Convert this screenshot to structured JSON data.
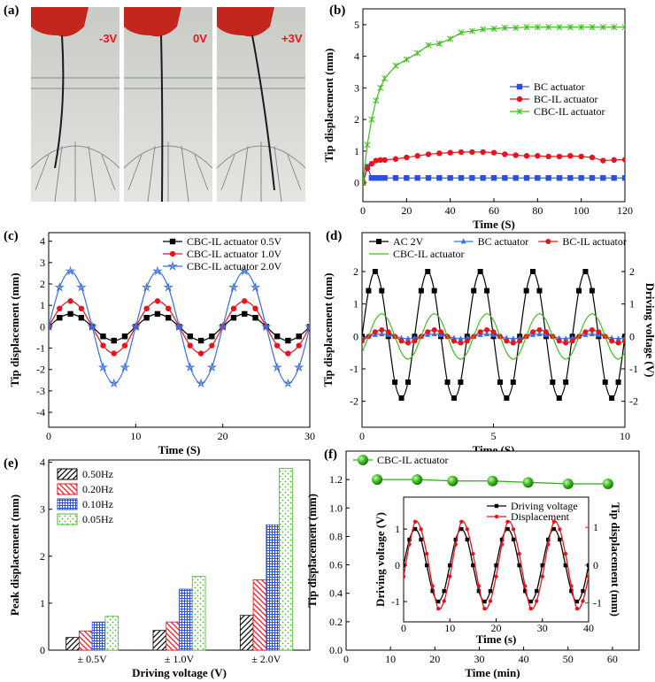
{
  "panel_a": {
    "label": "(a)",
    "captions": [
      "-3V",
      "0V",
      "+3V"
    ]
  },
  "chart_data": [
    {
      "type": "line",
      "label": "(b)",
      "x_label": "Time (S)",
      "y_label": "Tip displacement (mm)",
      "xlim": [
        0,
        120
      ],
      "ylim": [
        -0.6,
        5.5
      ],
      "xticks": [
        0,
        20,
        40,
        60,
        80,
        100,
        120
      ],
      "yticks": [
        0,
        1,
        2,
        3,
        4,
        5
      ],
      "legend": "center right",
      "smooth": false,
      "x": [
        0,
        2,
        4,
        6,
        8,
        10,
        15,
        20,
        25,
        30,
        35,
        40,
        45,
        50,
        55,
        60,
        65,
        70,
        75,
        80,
        85,
        90,
        95,
        100,
        105,
        110,
        115,
        120
      ],
      "series": [
        {
          "name": "BC actuator",
          "color": "#2b4fe0",
          "marker": "square",
          "values": [
            0,
            0.5,
            0.15,
            0.15,
            0.15,
            0.15,
            0.15,
            0.15,
            0.15,
            0.15,
            0.15,
            0.15,
            0.15,
            0.15,
            0.15,
            0.15,
            0.15,
            0.15,
            0.15,
            0.15,
            0.15,
            0.15,
            0.15,
            0.15,
            0.15,
            0.15,
            0.15,
            0.15
          ]
        },
        {
          "name": "BC-IL actuator",
          "color": "#e8141b",
          "marker": "circle",
          "values": [
            0,
            0.45,
            0.6,
            0.7,
            0.72,
            0.72,
            0.75,
            0.8,
            0.85,
            0.9,
            0.93,
            0.95,
            0.97,
            0.97,
            0.97,
            0.95,
            0.9,
            0.87,
            0.85,
            0.85,
            0.83,
            0.83,
            0.85,
            0.83,
            0.8,
            0.7,
            0.72,
            0.73
          ]
        },
        {
          "name": "CBC-IL actuator",
          "color": "#3fbf1f",
          "marker": "cross",
          "values": [
            0,
            1.2,
            2.0,
            2.6,
            3.0,
            3.3,
            3.7,
            3.9,
            4.1,
            4.35,
            4.4,
            4.55,
            4.75,
            4.8,
            4.85,
            4.87,
            4.9,
            4.9,
            4.92,
            4.92,
            4.92,
            4.92,
            4.92,
            4.92,
            4.92,
            4.92,
            4.92,
            4.92
          ]
        }
      ]
    },
    {
      "type": "line",
      "label": "(c)",
      "x_label": "Time (S)",
      "y_label": "Tip displacement (mm)",
      "xlim": [
        0,
        30
      ],
      "ylim": [
        -4.7,
        4.4
      ],
      "xticks": [
        0,
        10,
        20,
        30
      ],
      "yticks": [
        -4,
        -3,
        -2,
        -1,
        0,
        1,
        2,
        3,
        4
      ],
      "legend": "upper right",
      "smooth": true,
      "x": [
        0,
        1.25,
        2.5,
        3.75,
        5,
        6.25,
        7.5,
        8.75,
        10,
        11.25,
        12.5,
        13.75,
        15,
        16.25,
        17.5,
        18.75,
        20,
        21.25,
        22.5,
        23.75,
        25,
        26.25,
        27.5,
        28.75,
        30
      ],
      "series": [
        {
          "name": "CBC-IL actuator  0.5V",
          "color": "#000000",
          "marker": "square",
          "values": [
            0,
            0.42,
            0.6,
            0.42,
            0,
            -0.45,
            -0.65,
            -0.45,
            0,
            0.42,
            0.6,
            0.42,
            0,
            -0.45,
            -0.65,
            -0.45,
            0,
            0.42,
            0.6,
            0.42,
            0,
            -0.45,
            -0.65,
            -0.45,
            0
          ]
        },
        {
          "name": "CBC-IL actuator  1.0V",
          "color": "#e8141b",
          "marker": "circle",
          "values": [
            0,
            0.85,
            1.2,
            0.85,
            0,
            -0.88,
            -1.25,
            -0.88,
            0,
            0.85,
            1.2,
            0.85,
            0,
            -0.88,
            -1.25,
            -0.88,
            0,
            0.85,
            1.2,
            0.85,
            0,
            -0.88,
            -1.25,
            -0.88,
            0
          ]
        },
        {
          "name": "CBC-IL  actuator 2.0V",
          "color": "#3a6fe0",
          "marker": "star",
          "values": [
            0,
            1.84,
            2.6,
            1.84,
            0,
            -1.9,
            -2.65,
            -1.9,
            0,
            1.84,
            2.6,
            1.84,
            0,
            -1.9,
            -2.65,
            -1.9,
            0,
            1.84,
            2.6,
            1.84,
            0,
            -1.9,
            -2.65,
            -1.9,
            0
          ]
        }
      ]
    },
    {
      "type": "line",
      "label": "(d)",
      "x_label": "Time (S)",
      "y_label": "Tip displacement (mm)",
      "y2_label": "Driving voltage (V)",
      "xlim": [
        0,
        10
      ],
      "ylim": [
        -2.8,
        3.2
      ],
      "y2lim": [
        -2.8,
        3.2
      ],
      "xticks": [
        0,
        5,
        10
      ],
      "yticks": [
        -2,
        -1,
        0,
        1,
        2
      ],
      "y2ticks": [
        -2,
        -1,
        0,
        1,
        2
      ],
      "legend": "upper left",
      "legend_columns": 3,
      "smooth": true,
      "x": [
        0,
        0.25,
        0.5,
        0.75,
        1,
        1.25,
        1.5,
        1.75,
        2,
        2.25,
        2.5,
        2.75,
        3,
        3.25,
        3.5,
        3.75,
        4,
        4.25,
        4.5,
        4.75,
        5,
        5.25,
        5.5,
        5.75,
        6,
        6.25,
        6.5,
        6.75,
        7,
        7.25,
        7.5,
        7.75,
        8,
        8.25,
        8.5,
        8.75,
        9,
        9.25,
        9.5,
        9.75,
        10
      ],
      "series": [
        {
          "name": "AC 2V",
          "color": "#000000",
          "marker": "square",
          "axis": "y2",
          "values": [
            0,
            1.41,
            2,
            1.41,
            0,
            -1.41,
            -1.9,
            -1.41,
            0,
            1.41,
            2,
            1.41,
            0,
            -1.41,
            -1.9,
            -1.41,
            0,
            1.41,
            2,
            1.41,
            0,
            -1.41,
            -1.9,
            -1.41,
            0,
            1.41,
            2,
            1.41,
            0,
            -1.41,
            -1.9,
            -1.41,
            0,
            1.41,
            2,
            1.41,
            0,
            -1.41,
            -1.9,
            -1.41,
            0
          ]
        },
        {
          "name": "BC actuator",
          "color": "#3a6fe0",
          "marker": "triangle",
          "values": [
            -0.05,
            0,
            0.05,
            0.07,
            0.05,
            0,
            -0.05,
            -0.07,
            -0.05,
            0,
            0.05,
            0.07,
            0.05,
            0,
            -0.05,
            -0.07,
            -0.05,
            0,
            0.05,
            0.07,
            0.05,
            0,
            -0.05,
            -0.07,
            -0.05,
            0,
            0.05,
            0.07,
            0.05,
            0,
            -0.05,
            -0.07,
            -0.05,
            0,
            0.05,
            0.07,
            0.05,
            0,
            -0.05,
            -0.07,
            -0.05
          ]
        },
        {
          "name": "BC-IL actuator",
          "color": "#e8141b",
          "marker": "circle",
          "values": [
            -0.14,
            0,
            0.14,
            0.2,
            0.14,
            0,
            -0.14,
            -0.2,
            -0.14,
            0,
            0.14,
            0.2,
            0.14,
            0,
            -0.14,
            -0.2,
            -0.14,
            0,
            0.14,
            0.2,
            0.14,
            0,
            -0.14,
            -0.2,
            -0.14,
            0,
            0.14,
            0.2,
            0.14,
            0,
            -0.14,
            -0.2,
            -0.14,
            0,
            0.14,
            0.2,
            0.14,
            0,
            -0.14,
            -0.2,
            -0.14
          ]
        },
        {
          "name": "CBC-IL actuator",
          "color": "#3fbf1f",
          "marker": "none",
          "values": [
            -0.5,
            0,
            0.5,
            0.7,
            0.5,
            0,
            -0.5,
            -0.7,
            -0.5,
            0,
            0.5,
            0.7,
            0.5,
            0,
            -0.5,
            -0.7,
            -0.5,
            0,
            0.5,
            0.7,
            0.5,
            0,
            -0.5,
            -0.7,
            -0.5,
            0,
            0.5,
            0.7,
            0.5,
            0,
            -0.5,
            -0.7,
            -0.5,
            0,
            0.5,
            0.7,
            0.5,
            0,
            -0.5,
            -0.7,
            -0.5
          ]
        }
      ]
    },
    {
      "type": "bar",
      "label": "(e)",
      "x_label": "Driving voltage (V)",
      "y_label": "Peak displacement (mm)",
      "ylim": [
        0,
        4.05
      ],
      "yticks": [
        0,
        1,
        2,
        3,
        4
      ],
      "legend": "upper left",
      "categories": [
        "± 0.5V",
        "± 1.0V",
        "± 2.0V"
      ],
      "series": [
        {
          "name": "0.50Hz",
          "color": "#000000",
          "hatch": "diagonal",
          "values": [
            0.27,
            0.42,
            0.74
          ]
        },
        {
          "name": "0.20Hz",
          "color": "#e8141b",
          "hatch": "back-diagonal",
          "values": [
            0.41,
            0.6,
            1.5
          ]
        },
        {
          "name": "0.10Hz",
          "color": "#2b4fe0",
          "hatch": "grid",
          "values": [
            0.6,
            1.3,
            2.67
          ]
        },
        {
          "name": "0.05Hz",
          "color": "#3fbf1f",
          "hatch": "dots",
          "values": [
            0.72,
            1.57,
            3.87
          ]
        }
      ]
    },
    {
      "type": "line",
      "label": "(f)",
      "x_label": "Time (min)",
      "y_label": "Tip displacement (mm)",
      "xlim": [
        0,
        66
      ],
      "ylim": [
        0,
        1.4
      ],
      "xticks": [
        0,
        10,
        20,
        30,
        40,
        50,
        60
      ],
      "yticks": [
        {
          "value": 0,
          "label": "0.0"
        },
        0.2,
        0.4,
        0.6,
        0.8,
        {
          "value": 1,
          "label": "1.0"
        },
        1.2
      ],
      "legend": "upper left",
      "smooth": false,
      "x": [
        7,
        16,
        24,
        33,
        41,
        50,
        59
      ],
      "series": [
        {
          "name": "CBC-IL actuator",
          "color": "#2fa81a",
          "marker": "ball",
          "values": [
            1.2,
            1.2,
            1.19,
            1.19,
            1.18,
            1.17,
            1.17
          ]
        }
      ]
    },
    {
      "type": "line",
      "x_label": "Time (s)",
      "y_label": "Driving voltage (V)",
      "y2_label": "Tip displacement (mm)",
      "y2_color": "#e8141b",
      "xlim": [
        0,
        40
      ],
      "ylim": [
        -1.56,
        1.88
      ],
      "y2lim": [
        -1.5,
        1.8
      ],
      "xticks": [
        0,
        10,
        20,
        30,
        40
      ],
      "yticks": [
        -1,
        0,
        1
      ],
      "y2ticks": [
        -1,
        0,
        1
      ],
      "legend": "upper right",
      "smooth": true,
      "x": [
        0,
        1.25,
        2.5,
        3.75,
        5,
        6.25,
        7.5,
        8.75,
        10,
        11.25,
        12.5,
        13.75,
        15,
        16.25,
        17.5,
        18.75,
        20,
        21.25,
        22.5,
        23.75,
        25,
        26.25,
        27.5,
        28.75,
        30,
        31.25,
        32.5,
        33.75,
        35,
        36.25,
        37.5,
        38.75,
        40
      ],
      "series": [
        {
          "name": "Driving voltage",
          "color": "#000000",
          "marker": "small-square",
          "values": [
            0,
            0.71,
            1,
            0.71,
            0,
            -0.71,
            -1,
            -0.71,
            0,
            0.71,
            1,
            0.71,
            0,
            -0.71,
            -1,
            -0.71,
            0,
            0.71,
            1,
            0.71,
            0,
            -0.71,
            -1,
            -0.71,
            0,
            0.71,
            1,
            0.71,
            0,
            -0.71,
            -1,
            -0.71,
            0
          ]
        },
        {
          "name": "Displacement",
          "color": "#e8141b",
          "marker": "small-circle",
          "axis": "y2",
          "values": [
            -0.3,
            0.55,
            1.15,
            0.95,
            0.3,
            -0.55,
            -1.15,
            -0.95,
            -0.3,
            0.55,
            1.15,
            0.95,
            0.3,
            -0.55,
            -1.15,
            -0.95,
            -0.3,
            0.55,
            1.15,
            0.95,
            0.3,
            -0.55,
            -1.15,
            -0.95,
            -0.3,
            0.55,
            1.15,
            0.95,
            0.3,
            -0.55,
            -1.15,
            -0.95,
            -0.3
          ]
        }
      ]
    }
  ]
}
